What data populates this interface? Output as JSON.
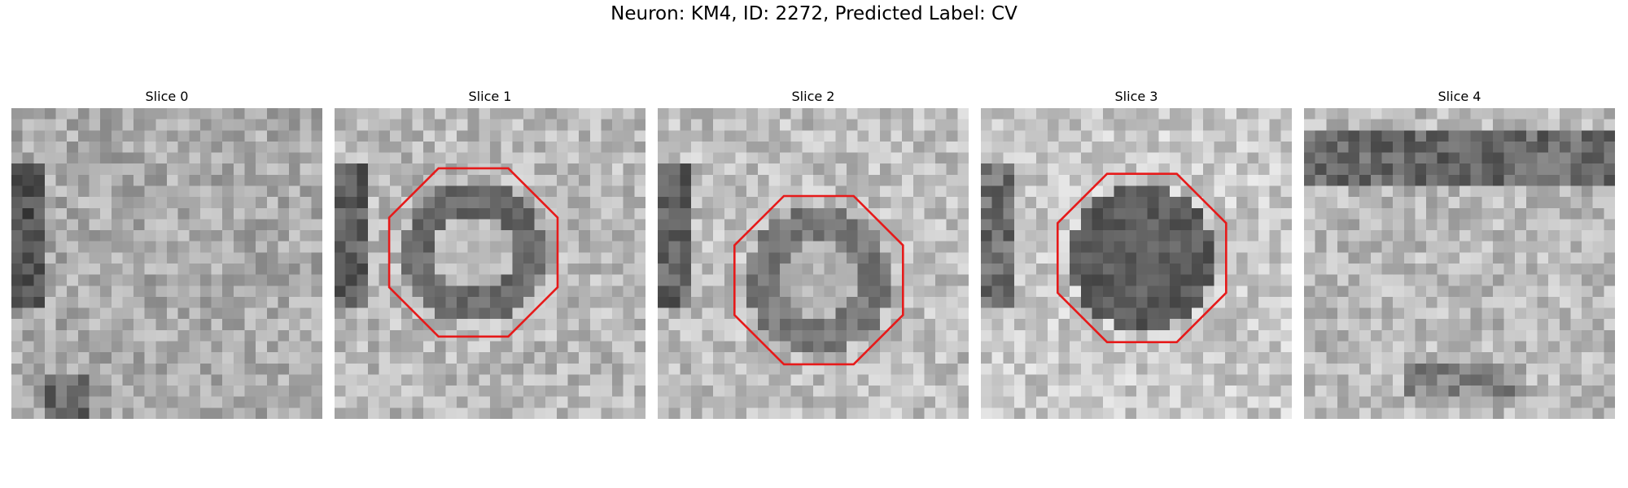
{
  "title": "Neuron: KM4, ID: 2272, Predicted Label: CV",
  "colors": {
    "outline": "#e61a1a",
    "background": "#ffffff"
  },
  "panels": [
    {
      "label": "Slice 0",
      "has_outline": false,
      "seed": 11,
      "base": 170
    },
    {
      "label": "Slice 1",
      "has_outline": true,
      "seed": 23,
      "base": 185,
      "center_value": 190,
      "ring_value": 105
    },
    {
      "label": "Slice 2",
      "has_outline": true,
      "seed": 37,
      "base": 190,
      "center_value": 180,
      "ring_value": 120
    },
    {
      "label": "Slice 3",
      "has_outline": true,
      "seed": 53,
      "base": 200,
      "center_value": 95,
      "ring_value": 90
    },
    {
      "label": "Slice 4",
      "has_outline": false,
      "seed": 71,
      "base": 185
    }
  ]
}
